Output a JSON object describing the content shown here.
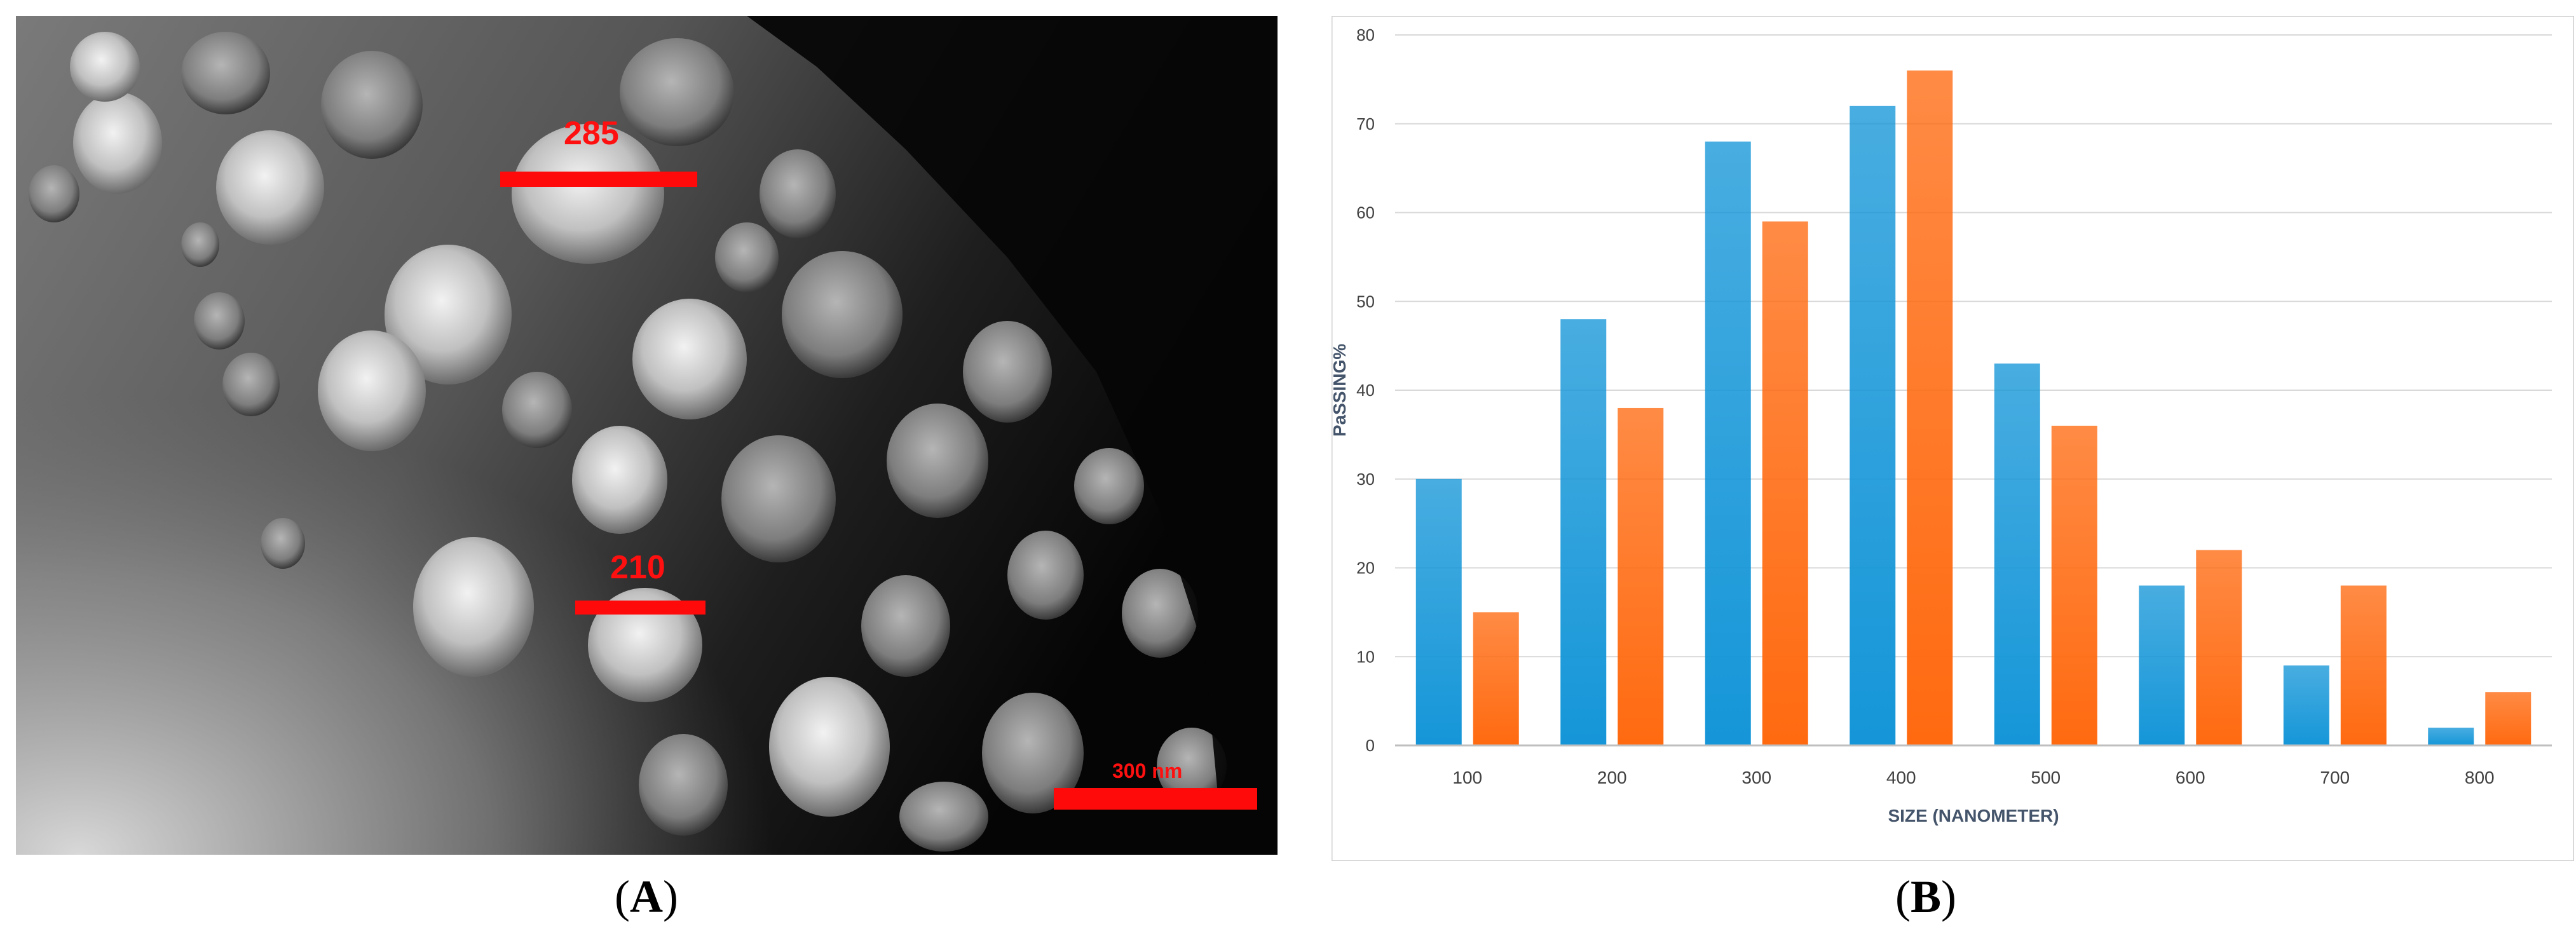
{
  "panel_a": {
    "caption_letter": "A",
    "measurements": [
      {
        "label": "285"
      },
      {
        "label": "210"
      }
    ],
    "scale_bar_label": "300 nm"
  },
  "panel_b": {
    "caption_letter": "B"
  },
  "chart_data": {
    "type": "bar",
    "title": "",
    "xlabel": "SIZE (NANOMETER)",
    "ylabel": "PaSSING%",
    "categories": [
      "100",
      "200",
      "300",
      "400",
      "500",
      "600",
      "700",
      "800"
    ],
    "ylim": [
      0,
      80
    ],
    "yticks": [
      0,
      10,
      20,
      30,
      40,
      50,
      60,
      70,
      80
    ],
    "grid": true,
    "legend": "none",
    "series": [
      {
        "color": "#1596d8",
        "values": [
          30,
          48,
          68,
          72,
          43,
          18,
          9,
          2
        ]
      },
      {
        "color": "#ff6a10",
        "values": [
          15,
          38,
          59,
          76,
          36,
          22,
          18,
          6
        ]
      }
    ]
  }
}
